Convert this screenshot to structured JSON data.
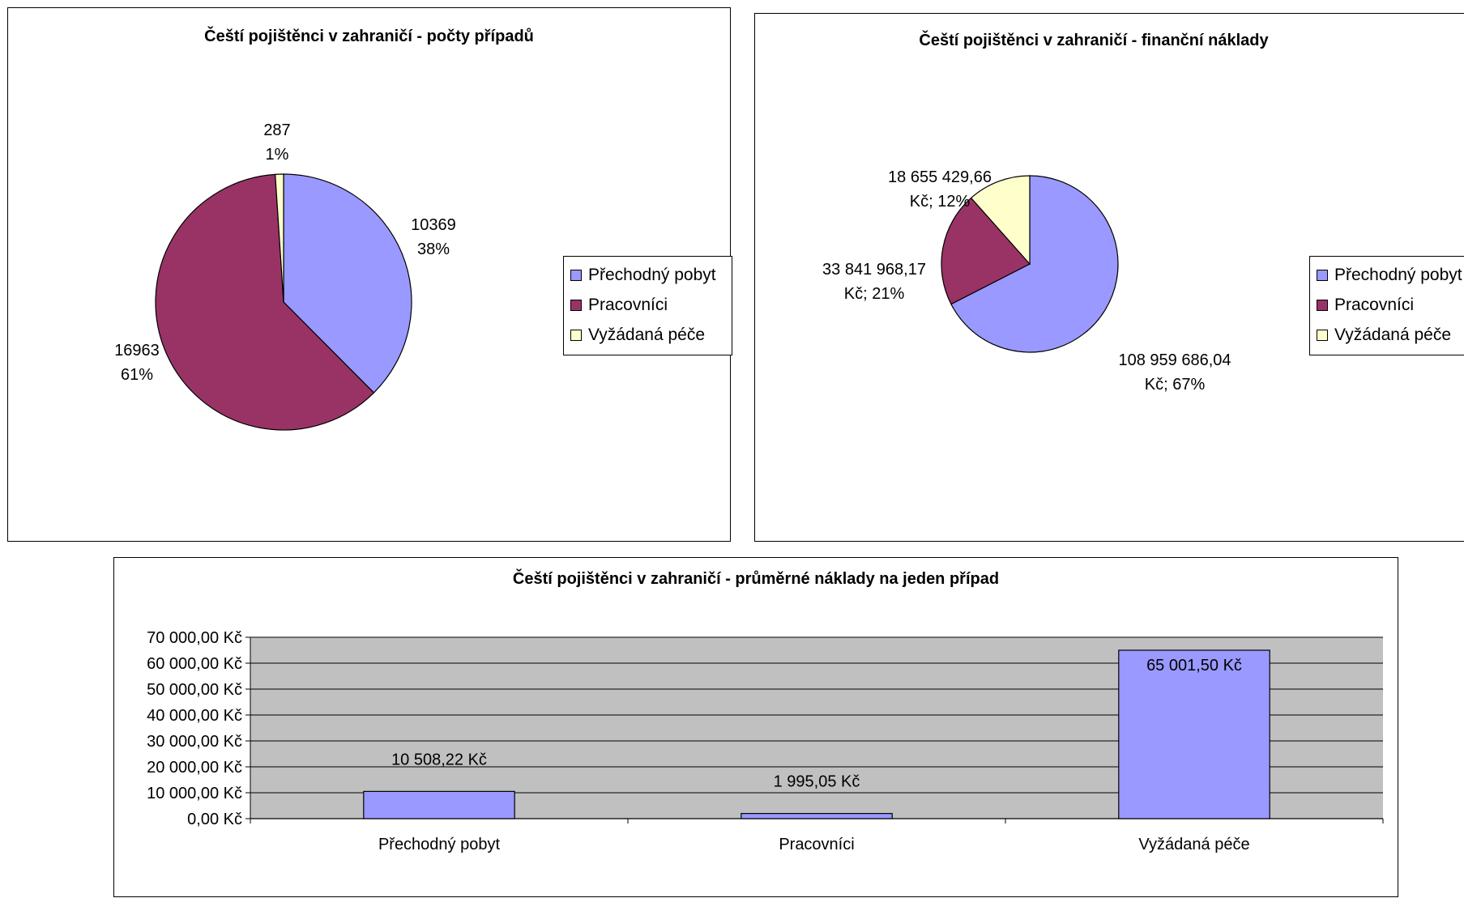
{
  "colors": {
    "prechodny": "#9999ff",
    "pracovnici": "#993366",
    "vyzadana": "#ffffcc",
    "plot_area": "#c0c0c0"
  },
  "chart_data": [
    {
      "type": "pie",
      "title": "Čeští pojištěnci v zahraničí - počty případů",
      "categories": [
        "Přechodný pobyt",
        "Pracovníci",
        "Vyžádaná péče"
      ],
      "values": [
        10369,
        16963,
        287
      ],
      "percentages": [
        "38%",
        "61%",
        "1%"
      ],
      "data_labels": [
        [
          "10369",
          "38%"
        ],
        [
          "16963",
          "61%"
        ],
        [
          "287",
          "1%"
        ]
      ],
      "legend": "right"
    },
    {
      "type": "pie",
      "title": "Čeští pojištěnci v zahraničí - finanční náklady",
      "categories": [
        "Přechodný pobyt",
        "Pracovníci",
        "Vyžádaná péče"
      ],
      "values": [
        108959686.04,
        33841968.17,
        18655429.66
      ],
      "percentages": [
        "67%",
        "21%",
        "12%"
      ],
      "data_labels": [
        [
          "108 959 686,04",
          "Kč; 67%"
        ],
        [
          "33 841 968,17",
          "Kč; 21%"
        ],
        [
          "18 655 429,66",
          "Kč; 12%"
        ]
      ],
      "legend": "right"
    },
    {
      "type": "bar",
      "title": "Čeští pojištěnci v zahraničí - průměrné náklady na jeden případ",
      "categories": [
        "Přechodný pobyt",
        "Pracovníci",
        "Vyžádaná péče"
      ],
      "values": [
        10508.22,
        1995.05,
        65001.5
      ],
      "data_labels": [
        "10 508,22 Kč",
        "1 995,05 Kč",
        "65 001,50 Kč"
      ],
      "ylim": [
        0,
        70000
      ],
      "y_ticks": [
        0,
        10000,
        20000,
        30000,
        40000,
        50000,
        60000,
        70000
      ],
      "y_tick_labels": [
        "0,00 Kč",
        "10 000,00 Kč",
        "20 000,00 Kč",
        "30 000,00 Kč",
        "40 000,00 Kč",
        "50 000,00 Kč",
        "60 000,00 Kč",
        "70 000,00 Kč"
      ],
      "grid": true,
      "legend": "none"
    }
  ]
}
